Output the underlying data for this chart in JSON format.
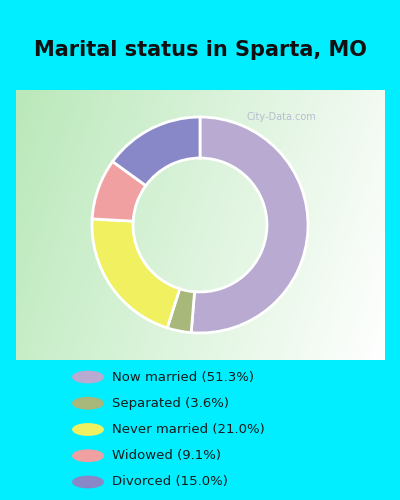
{
  "title": "Marital status in Sparta, MO",
  "slices": [
    {
      "label": "Now married (51.3%)",
      "value": 51.3,
      "color": "#b8aad0"
    },
    {
      "label": "Separated (3.6%)",
      "value": 3.6,
      "color": "#a8b87a"
    },
    {
      "label": "Never married (21.0%)",
      "value": 21.0,
      "color": "#f0f060"
    },
    {
      "label": "Widowed (9.1%)",
      "value": 9.1,
      "color": "#f0a0a0"
    },
    {
      "label": "Divorced (15.0%)",
      "value": 15.0,
      "color": "#8888c8"
    }
  ],
  "title_fontsize": 15,
  "title_color": "#111111",
  "cyan_color": "#00eeff",
  "legend_bg": "#00eeff",
  "chart_bg_left": "#c8e8c8",
  "chart_bg_right": "#f0f8f0",
  "watermark": "City-Data.com",
  "donut_width": 0.38
}
